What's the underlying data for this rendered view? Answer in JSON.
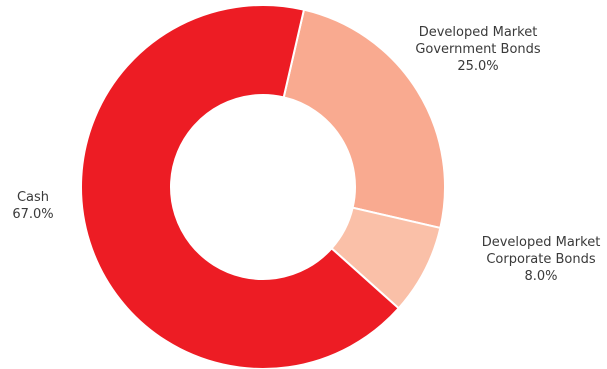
{
  "chart_data": {
    "type": "pie",
    "variant": "donut",
    "slices": [
      {
        "label_lines": [
          "Developed Market",
          "Government Bonds"
        ],
        "value": 25.0,
        "value_label": "25.0%",
        "color": "#F9AA90"
      },
      {
        "label_lines": [
          "Developed Market",
          "Corporate Bonds"
        ],
        "value": 8.0,
        "value_label": "8.0%",
        "color": "#FAC0A8"
      },
      {
        "label_lines": [
          "Cash"
        ],
        "value": 67.0,
        "value_label": "67.0%",
        "color": "#ED1C24"
      }
    ],
    "legend": "none"
  }
}
